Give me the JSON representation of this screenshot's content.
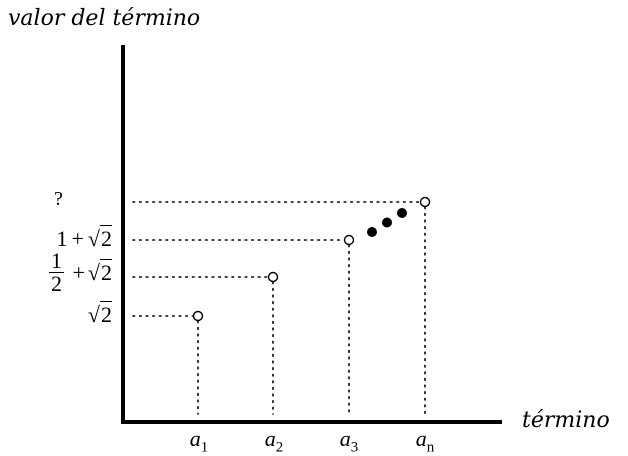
{
  "chart_data": {
    "type": "scatter",
    "ylabel": "valor del término",
    "xlabel": "término",
    "x_ticks": [
      {
        "var": "a",
        "sub": "1"
      },
      {
        "var": "a",
        "sub": "2"
      },
      {
        "var": "a",
        "sub": "3"
      },
      {
        "var": "a",
        "sub": "n"
      }
    ],
    "y_ticks": {
      "t1": {
        "radical": "2"
      },
      "t2": {
        "num": "1",
        "den": "2",
        "plus": "+",
        "radical": "2"
      },
      "t3": {
        "lead": "1",
        "plus": "+",
        "radical": "2"
      },
      "t4": {
        "text": "?"
      }
    },
    "points": [
      {
        "term": 1,
        "level": 1,
        "style": "open"
      },
      {
        "term": 2,
        "level": 2,
        "style": "open"
      },
      {
        "term": 3,
        "level": 3,
        "style": "open"
      },
      {
        "term": 4,
        "level": 4,
        "style": "open"
      }
    ],
    "ellipsis_dots": 3,
    "grid": false
  }
}
